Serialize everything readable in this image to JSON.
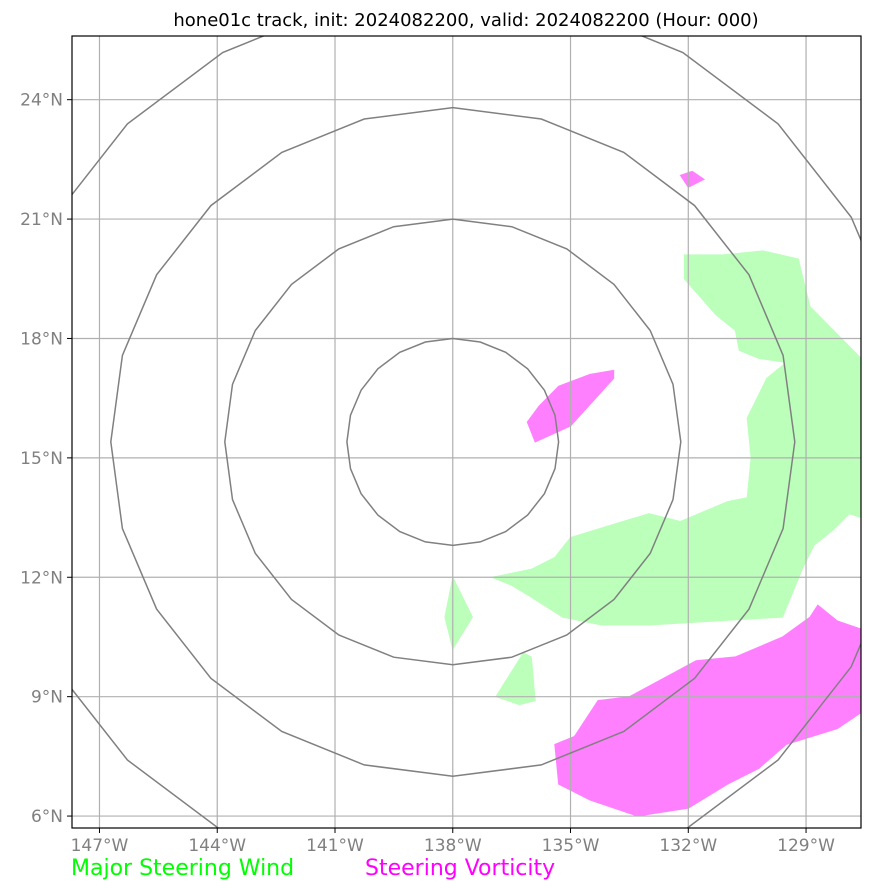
{
  "title": "hone01c track, init: 2024082200, valid: 2024082200 (Hour: 000)",
  "map": {
    "lon_range": [
      -147.7,
      -127.6
    ],
    "lat_range": [
      5.7,
      25.6
    ],
    "lon_ticks": [
      {
        "value": -147,
        "label": "147°W"
      },
      {
        "value": -144,
        "label": "144°W"
      },
      {
        "value": -141,
        "label": "141°W"
      },
      {
        "value": -138,
        "label": "138°W"
      },
      {
        "value": -135,
        "label": "135°W"
      },
      {
        "value": -132,
        "label": "132°W"
      },
      {
        "value": -129,
        "label": "129°W"
      }
    ],
    "lat_ticks": [
      {
        "value": 6,
        "label": "6°N"
      },
      {
        "value": 9,
        "label": "9°N"
      },
      {
        "value": 12,
        "label": "12°N"
      },
      {
        "value": 15,
        "label": "15°N"
      },
      {
        "value": 18,
        "label": "18°N"
      },
      {
        "value": 21,
        "label": "21°N"
      },
      {
        "value": 24,
        "label": "24°N"
      }
    ],
    "grid": true,
    "range_rings": {
      "center": [
        -138.0,
        15.4
      ],
      "radii_deg": [
        2.6,
        5.6,
        8.4,
        11.3
      ],
      "color": "#808080"
    }
  },
  "layers": {
    "steering_wind": {
      "label": "Major Steering Wind",
      "color": "#00ff00",
      "fill": "#bbffbb",
      "polygons": [
        [
          [
            -132.1,
            20.1
          ],
          [
            -131.1,
            20.1
          ],
          [
            -130.1,
            20.2
          ],
          [
            -129.2,
            20.0
          ],
          [
            -128.9,
            18.8
          ],
          [
            -127.6,
            17.5
          ],
          [
            -127.6,
            13.5
          ],
          [
            -127.9,
            13.6
          ],
          [
            -128.3,
            13.2
          ],
          [
            -128.8,
            12.8
          ],
          [
            -129.1,
            12.2
          ],
          [
            -129.6,
            11.0
          ],
          [
            -131.3,
            10.9
          ],
          [
            -133.0,
            10.8
          ],
          [
            -134.2,
            10.8
          ],
          [
            -135.2,
            11.0
          ],
          [
            -136.0,
            11.5
          ],
          [
            -136.5,
            11.8
          ],
          [
            -137.0,
            12.0
          ],
          [
            -136.0,
            12.2
          ],
          [
            -135.4,
            12.5
          ],
          [
            -135.0,
            13.0
          ],
          [
            -134.0,
            13.3
          ],
          [
            -133.0,
            13.6
          ],
          [
            -132.2,
            13.4
          ],
          [
            -131.0,
            13.9
          ],
          [
            -130.5,
            14.0
          ],
          [
            -130.4,
            15.0
          ],
          [
            -130.5,
            16.0
          ],
          [
            -130.0,
            17.0
          ],
          [
            -129.5,
            17.4
          ],
          [
            -130.2,
            17.5
          ],
          [
            -130.7,
            17.7
          ],
          [
            -130.8,
            18.2
          ],
          [
            -131.3,
            18.6
          ],
          [
            -132.1,
            19.5
          ]
        ],
        [
          [
            -129.1,
            15.1
          ],
          [
            -128.8,
            15.0
          ],
          [
            -128.9,
            14.7
          ]
        ],
        [
          [
            -138.0,
            12.0
          ],
          [
            -137.5,
            11.0
          ],
          [
            -138.0,
            10.2
          ],
          [
            -138.2,
            11.0
          ]
        ],
        [
          [
            -136.2,
            10.1
          ],
          [
            -136.0,
            10.0
          ],
          [
            -135.9,
            8.9
          ],
          [
            -136.3,
            8.8
          ],
          [
            -136.9,
            9.0
          ]
        ]
      ]
    },
    "steering_vorticity": {
      "label": "Steering Vorticity",
      "color": "#ff00ff",
      "fill": "#ff80ff",
      "polygons": [
        [
          [
            -135.8,
            16.3
          ],
          [
            -135.3,
            16.8
          ],
          [
            -134.5,
            17.1
          ],
          [
            -133.9,
            17.2
          ],
          [
            -133.9,
            17.0
          ],
          [
            -135.0,
            15.8
          ],
          [
            -135.9,
            15.4
          ],
          [
            -136.1,
            15.9
          ]
        ],
        [
          [
            -132.2,
            22.1
          ],
          [
            -131.9,
            22.2
          ],
          [
            -131.6,
            22.0
          ],
          [
            -132.0,
            21.8
          ]
        ],
        [
          [
            -134.9,
            8.0
          ],
          [
            -134.3,
            8.9
          ],
          [
            -133.5,
            9.0
          ],
          [
            -131.8,
            9.9
          ],
          [
            -130.8,
            10.0
          ],
          [
            -129.6,
            10.5
          ],
          [
            -128.9,
            11.0
          ],
          [
            -128.7,
            11.3
          ],
          [
            -128.2,
            10.9
          ],
          [
            -127.6,
            10.7
          ],
          [
            -127.6,
            8.6
          ],
          [
            -128.2,
            8.2
          ],
          [
            -129.5,
            7.8
          ],
          [
            -130.2,
            7.2
          ],
          [
            -131.0,
            6.8
          ],
          [
            -132.0,
            6.2
          ],
          [
            -133.3,
            6.0
          ],
          [
            -134.5,
            6.4
          ],
          [
            -135.3,
            6.8
          ],
          [
            -135.4,
            7.8
          ]
        ]
      ]
    }
  }
}
